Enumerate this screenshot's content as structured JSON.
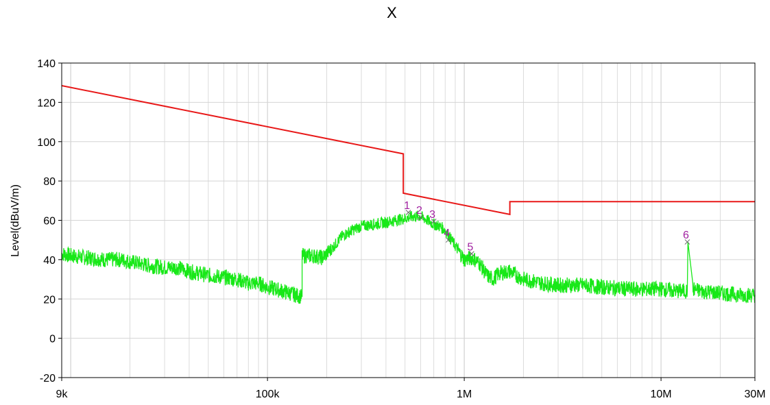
{
  "chart_data": {
    "type": "line",
    "title": "X",
    "xlabel": "",
    "ylabel": "Level(dBuV/m)",
    "x_scale": "log",
    "xlim": [
      9000,
      30000000
    ],
    "ylim": [
      -20,
      140
    ],
    "grid": true,
    "x_ticks": [
      {
        "value": 9000,
        "label": "9k"
      },
      {
        "value": 100000,
        "label": "100k"
      },
      {
        "value": 1000000,
        "label": "1M"
      },
      {
        "value": 10000000,
        "label": "10M"
      },
      {
        "value": 30000000,
        "label": "30M"
      }
    ],
    "y_ticks": [
      {
        "value": 140,
        "label": "140"
      },
      {
        "value": 120,
        "label": "120"
      },
      {
        "value": 100,
        "label": "100"
      },
      {
        "value": 80,
        "label": "80"
      },
      {
        "value": 60,
        "label": "60"
      },
      {
        "value": 40,
        "label": "40"
      },
      {
        "value": 20,
        "label": "20"
      },
      {
        "value": 0,
        "label": "0"
      },
      {
        "value": -20,
        "label": "-20"
      }
    ],
    "limit_line": {
      "color": "#e81818",
      "x": [
        9000,
        490000,
        490000,
        1705000,
        1705000,
        30000000
      ],
      "y": [
        128.5,
        93.8,
        73.8,
        63.0,
        69.5,
        69.5
      ]
    },
    "measurement": {
      "color": "#18e818",
      "x": [
        9000,
        10000,
        12000,
        15000,
        18000,
        20000,
        25000,
        30000,
        35000,
        40000,
        50000,
        60000,
        70000,
        80000,
        90000,
        100000,
        110000,
        130000,
        150000,
        150001,
        170000,
        190000,
        210000,
        240000,
        270000,
        300000,
        350000,
        400000,
        450000,
        500000,
        550000,
        600000,
        650000,
        700000,
        750000,
        800000,
        900000,
        1000000,
        1100000,
        1200000,
        1300000,
        1400000,
        1500000,
        1700000,
        2000000,
        2500000,
        3000000,
        4000000,
        5000000,
        7000000,
        10000000,
        12000000,
        13000000,
        13600000,
        13700000,
        14500000,
        16000000,
        20000000,
        25000000,
        30000000
      ],
      "y": [
        43,
        42,
        41,
        40,
        40,
        39,
        37,
        36,
        36,
        34,
        32,
        31,
        30,
        28,
        28,
        26,
        25,
        23,
        21,
        42,
        42,
        41,
        45,
        52,
        55,
        57,
        58,
        59,
        60,
        61,
        62,
        62,
        60,
        58,
        57,
        55,
        47,
        40,
        41,
        38,
        32,
        30,
        33,
        34,
        30,
        28,
        27,
        27,
        26,
        25,
        25,
        24,
        24,
        24,
        49,
        25,
        24,
        23,
        22,
        22
      ]
    },
    "markers": [
      {
        "label": "1",
        "x": 520000,
        "y": 64
      },
      {
        "label": "2",
        "x": 600000,
        "y": 61.5
      },
      {
        "label": "3",
        "x": 700000,
        "y": 59.5
      },
      {
        "label": "4",
        "x": 830000,
        "y": 50
      },
      {
        "label": "5",
        "x": 1090000,
        "y": 43
      },
      {
        "label": "6",
        "x": 13600000,
        "y": 49
      }
    ],
    "marker_color": "#a020a0"
  }
}
